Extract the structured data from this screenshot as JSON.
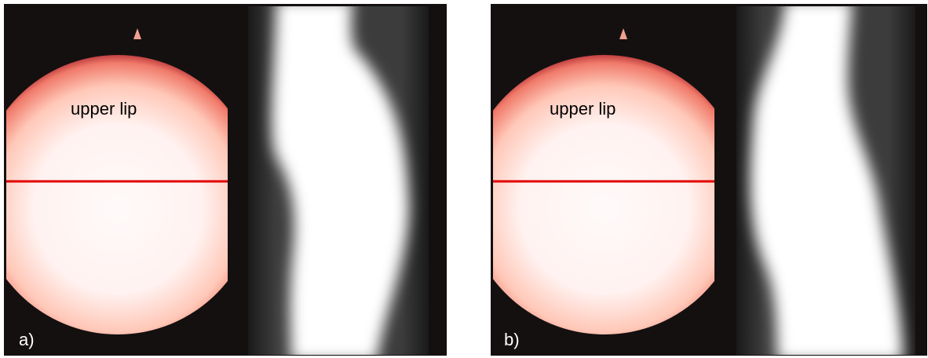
{
  "panels": [
    {
      "label": "a)",
      "annotation": "upper lip"
    },
    {
      "label": "b)",
      "annotation": "upper lip"
    }
  ]
}
